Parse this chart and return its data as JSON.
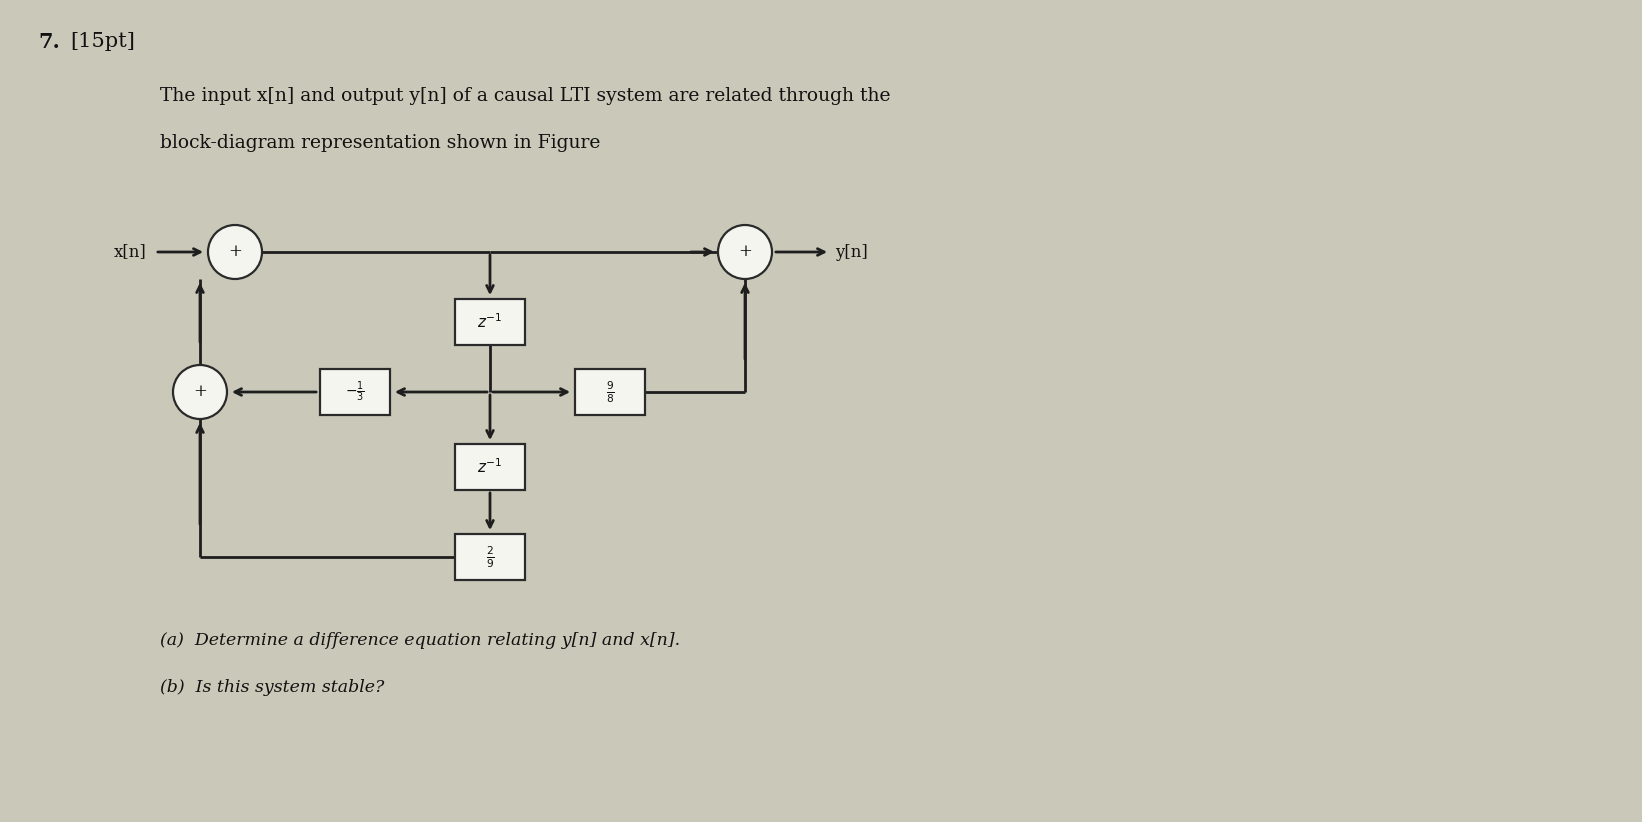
{
  "bg_color": "#cac9b9",
  "title_number": "7.",
  "title_points": "[15pt]",
  "desc1": "The input x[n] and output y[n] of a causal LTI system are related through the",
  "desc2": "block-diagram representation shown in Figure",
  "qa": "(a)  Determine a difference equation relating y[n] and x[n].",
  "qb": "(b)  Is this system stable?",
  "box_color": "#f5f5f0",
  "box_edge": "#2a2a2a",
  "line_color": "#1e1e1e",
  "text_color": "#111111",
  "figsize": [
    16.42,
    8.22
  ],
  "dpi": 100
}
